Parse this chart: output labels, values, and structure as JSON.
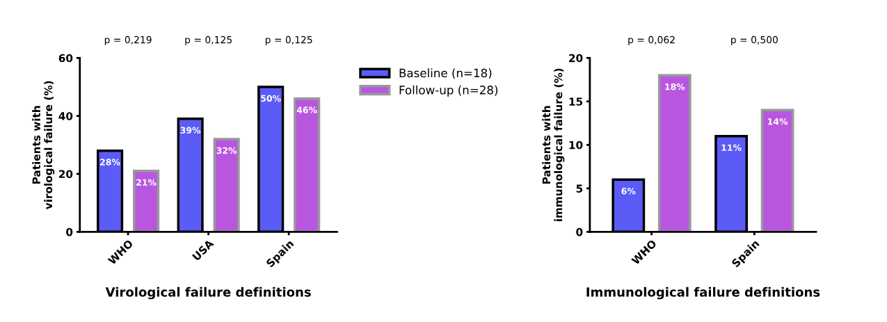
{
  "chart_data": [
    {
      "type": "bar",
      "xlabel": "Virological failure definitions",
      "ylabel": "Patients with\nvirological failure (%)",
      "categories": [
        "WHO",
        "USA",
        "Spain"
      ],
      "series": [
        {
          "name": "Baseline (n=18)",
          "color": "#5b5bf5",
          "values": [
            28,
            39,
            50
          ],
          "value_labels": [
            "28%",
            "39%",
            "50%"
          ]
        },
        {
          "name": "Follow-up (n=28)",
          "color": "#b956e0",
          "values": [
            21,
            32,
            46
          ],
          "value_labels": [
            "21%",
            "32%",
            "46%"
          ]
        }
      ],
      "ylim": [
        0,
        60
      ],
      "yticks": [
        0,
        20,
        40,
        60
      ],
      "grid": false,
      "legend": "right",
      "annotations": [
        "p = 0,219",
        "p = 0,125",
        "p = 0,125"
      ]
    },
    {
      "type": "bar",
      "xlabel": "Immunological failure definitions",
      "ylabel": "Patients with\nimmunological failure (%)",
      "categories": [
        "WHO",
        "Spain"
      ],
      "series": [
        {
          "color": "#5b5bf5",
          "values": [
            6,
            11
          ],
          "value_labels": [
            "6%",
            "11%"
          ]
        },
        {
          "color": "#b956e0",
          "values": [
            18,
            14
          ],
          "value_labels": [
            "18%",
            "14%"
          ]
        }
      ],
      "ylim": [
        0,
        20
      ],
      "yticks": [
        0,
        5,
        10,
        15,
        20
      ],
      "grid": false,
      "annotations": [
        "p = 0,062",
        "p = 0,500"
      ]
    }
  ]
}
